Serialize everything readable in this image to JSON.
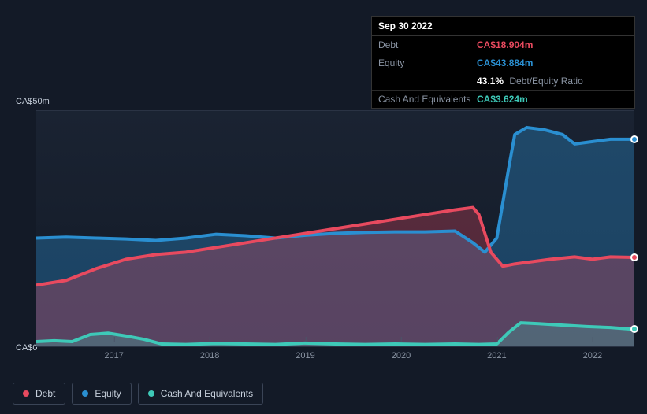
{
  "tooltip": {
    "date": "Sep 30 2022",
    "rows": {
      "debt": {
        "label": "Debt",
        "value": "CA$18.904m",
        "color": "#e84a5f"
      },
      "equity": {
        "label": "Equity",
        "value": "CA$43.884m",
        "color": "#2a8fd1"
      },
      "ratio": {
        "value": "43.1%",
        "label": "Debt/Equity Ratio"
      },
      "cash": {
        "label": "Cash And Equivalents",
        "value": "CA$3.624m",
        "color": "#3ec9b8"
      }
    }
  },
  "chart": {
    "type": "area",
    "background_color": "#131a27",
    "grid_border_color": "#2a3344",
    "ymin": 0,
    "ymax": 50,
    "y_ticks": [
      {
        "value": 50,
        "label": "CA$50m"
      },
      {
        "value": 0,
        "label": "CA$0"
      }
    ],
    "x_years": [
      2017,
      2018,
      2019,
      2020,
      2021,
      2022
    ],
    "x_range_fractional": [
      0.13,
      0.29,
      0.45,
      0.61,
      0.77,
      0.93
    ],
    "series": {
      "equity": {
        "label": "Equity",
        "color": "#2a8fd1",
        "fill_opacity": 0.35,
        "points": [
          [
            0.0,
            23.0
          ],
          [
            0.05,
            23.2
          ],
          [
            0.1,
            23.0
          ],
          [
            0.15,
            22.8
          ],
          [
            0.2,
            22.5
          ],
          [
            0.25,
            23.0
          ],
          [
            0.3,
            23.8
          ],
          [
            0.35,
            23.5
          ],
          [
            0.4,
            23.0
          ],
          [
            0.45,
            23.6
          ],
          [
            0.5,
            24.0
          ],
          [
            0.55,
            24.2
          ],
          [
            0.6,
            24.3
          ],
          [
            0.65,
            24.3
          ],
          [
            0.7,
            24.5
          ],
          [
            0.73,
            22.0
          ],
          [
            0.75,
            20.0
          ],
          [
            0.77,
            23.0
          ],
          [
            0.79,
            38.0
          ],
          [
            0.8,
            45.0
          ],
          [
            0.82,
            46.5
          ],
          [
            0.85,
            46.0
          ],
          [
            0.88,
            45.0
          ],
          [
            0.9,
            43.0
          ],
          [
            0.93,
            43.5
          ],
          [
            0.96,
            44.0
          ],
          [
            1.0,
            44.0
          ]
        ]
      },
      "debt": {
        "label": "Debt",
        "color": "#e84a5f",
        "fill_opacity": 0.3,
        "points": [
          [
            0.0,
            13.0
          ],
          [
            0.05,
            14.0
          ],
          [
            0.1,
            16.5
          ],
          [
            0.15,
            18.5
          ],
          [
            0.2,
            19.5
          ],
          [
            0.25,
            20.0
          ],
          [
            0.3,
            21.0
          ],
          [
            0.35,
            22.0
          ],
          [
            0.4,
            23.0
          ],
          [
            0.45,
            24.0
          ],
          [
            0.5,
            25.0
          ],
          [
            0.55,
            26.0
          ],
          [
            0.6,
            27.0
          ],
          [
            0.65,
            28.0
          ],
          [
            0.7,
            29.0
          ],
          [
            0.73,
            29.5
          ],
          [
            0.74,
            28.0
          ],
          [
            0.76,
            20.0
          ],
          [
            0.78,
            17.0
          ],
          [
            0.8,
            17.5
          ],
          [
            0.83,
            18.0
          ],
          [
            0.86,
            18.5
          ],
          [
            0.9,
            19.0
          ],
          [
            0.93,
            18.5
          ],
          [
            0.96,
            19.0
          ],
          [
            1.0,
            18.9
          ]
        ]
      },
      "cash": {
        "label": "Cash And Equivalents",
        "color": "#3ec9b8",
        "fill_opacity": 0.25,
        "points": [
          [
            0.0,
            1.0
          ],
          [
            0.03,
            1.2
          ],
          [
            0.06,
            1.0
          ],
          [
            0.09,
            2.5
          ],
          [
            0.12,
            2.8
          ],
          [
            0.15,
            2.2
          ],
          [
            0.18,
            1.5
          ],
          [
            0.21,
            0.5
          ],
          [
            0.25,
            0.4
          ],
          [
            0.3,
            0.6
          ],
          [
            0.35,
            0.5
          ],
          [
            0.4,
            0.4
          ],
          [
            0.45,
            0.7
          ],
          [
            0.5,
            0.5
          ],
          [
            0.55,
            0.4
          ],
          [
            0.6,
            0.5
          ],
          [
            0.65,
            0.4
          ],
          [
            0.7,
            0.5
          ],
          [
            0.74,
            0.4
          ],
          [
            0.77,
            0.5
          ],
          [
            0.79,
            3.0
          ],
          [
            0.81,
            5.0
          ],
          [
            0.84,
            4.8
          ],
          [
            0.88,
            4.5
          ],
          [
            0.92,
            4.2
          ],
          [
            0.96,
            4.0
          ],
          [
            1.0,
            3.6
          ]
        ]
      }
    },
    "cursor_x": 1.0,
    "markers": [
      {
        "series": "equity",
        "x": 1.0,
        "y": 44.0
      },
      {
        "series": "debt",
        "x": 1.0,
        "y": 18.9
      },
      {
        "series": "cash",
        "x": 1.0,
        "y": 3.6
      }
    ]
  },
  "legend": {
    "items": [
      {
        "key": "debt",
        "label": "Debt",
        "color": "#e84a5f"
      },
      {
        "key": "equity",
        "label": "Equity",
        "color": "#2a8fd1"
      },
      {
        "key": "cash",
        "label": "Cash And Equivalents",
        "color": "#3ec9b8"
      }
    ]
  }
}
